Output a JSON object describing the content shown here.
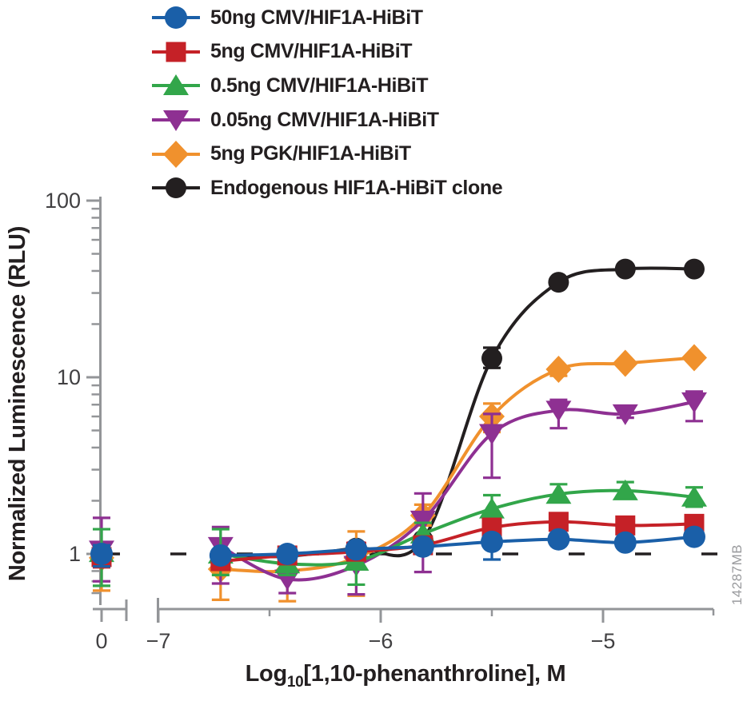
{
  "watermark": "14287MB",
  "chart_data": {
    "type": "line",
    "title": "",
    "ylabel": "Normalized Luminescence (RLU)",
    "xlabel": {
      "prefix": "Log",
      "subscript": "10",
      "rest": "[1,10-phenanthroline], M"
    },
    "y_axis": {
      "scale": "log",
      "tick_labels": [
        "100",
        "10",
        "1"
      ],
      "tick_values": [
        100,
        10,
        1
      ],
      "range": [
        0.55,
        100
      ]
    },
    "x_axis": {
      "zero_label": "0",
      "tick_labels": [
        "−7",
        "−6",
        "−5"
      ],
      "tick_values": [
        -7,
        -6,
        -5
      ],
      "minor_tick_values": [
        -6.5,
        -5.5
      ],
      "range": [
        -7,
        -4.5
      ],
      "has_break": true
    },
    "baseline": {
      "value": 1,
      "style": "dashed",
      "color": "#231F20"
    },
    "x_log_values": [
      -6.72,
      -6.42,
      -6.11,
      -5.81,
      -5.5,
      -5.2,
      -4.9,
      -4.59
    ],
    "control_x_label": "0",
    "series": [
      {
        "name": "50ng CMV/HIF1A-HiBiT",
        "color": "#1A5FA8",
        "marker": "circle",
        "control": 1.0,
        "control_err": {
          "hi": 0.12,
          "lo": 0.15
        },
        "values": [
          0.98,
          1.0,
          1.06,
          1.1,
          1.17,
          1.21,
          1.16,
          1.25
        ],
        "err_hi": [
          0,
          0,
          0,
          0,
          0.1,
          0,
          0,
          0
        ],
        "err_lo": [
          0,
          0,
          0,
          0,
          0.24,
          0,
          0,
          0
        ]
      },
      {
        "name": "5ng CMV/HIF1A-HiBiT",
        "color": "#C52127",
        "marker": "square",
        "control": 0.96,
        "control_err": {
          "hi": 0.12,
          "lo": 0.12
        },
        "values": [
          0.91,
          0.98,
          1.03,
          1.12,
          1.41,
          1.52,
          1.45,
          1.48
        ],
        "err_hi": [
          0,
          0,
          0,
          0,
          0,
          0,
          0,
          0
        ],
        "err_lo": [
          0,
          0,
          0,
          0,
          0,
          0,
          0,
          0
        ]
      },
      {
        "name": "0.5ng CMV/HIF1A-HiBiT",
        "color": "#32A64A",
        "marker": "triangle-up",
        "control": 1.02,
        "control_err": {
          "hi": 0.36,
          "lo": 0.36
        },
        "values": [
          1.0,
          0.88,
          0.91,
          1.3,
          1.8,
          2.18,
          2.28,
          2.1
        ],
        "err_hi": [
          0.38,
          0.12,
          0.16,
          0.2,
          0.35,
          0.3,
          0.27,
          0.28
        ],
        "err_lo": [
          0.24,
          0.12,
          0.24,
          0.15,
          0.3,
          0.2,
          0.2,
          0.25
        ]
      },
      {
        "name": "0.05ng CMV/HIF1A-HiBiT",
        "color": "#8E3092",
        "marker": "triangle-down",
        "control": 1.05,
        "control_err": {
          "hi": 0.55,
          "lo": 0.35
        },
        "values": [
          1.1,
          0.72,
          0.86,
          1.55,
          4.8,
          6.5,
          6.2,
          7.25
        ],
        "err_hi": [
          0.32,
          0.12,
          0.3,
          0.65,
          1.4,
          0.95,
          0.3,
          1.05
        ],
        "err_lo": [
          0.42,
          0.12,
          0.27,
          0.76,
          2.1,
          1.35,
          0.3,
          1.6
        ]
      },
      {
        "name": "5ng PGK/HIF1A-HiBiT",
        "color": "#F0912D",
        "marker": "diamond",
        "control": 0.95,
        "control_err": {
          "hi": 0.15,
          "lo": 0.33
        },
        "values": [
          0.82,
          0.8,
          0.95,
          1.65,
          6.0,
          11.1,
          12.0,
          12.9
        ],
        "err_hi": [
          0.08,
          0.08,
          0.39,
          0.25,
          1.1,
          0.4,
          0,
          0
        ],
        "err_lo": [
          0.27,
          0.26,
          0.37,
          0.2,
          1.1,
          0.9,
          0,
          0
        ]
      },
      {
        "name": "Endogenous HIF1A-HiBiT clone",
        "color": "#231F20",
        "marker": "circle",
        "control": 1.0,
        "control_err": {
          "hi": 0,
          "lo": 0
        },
        "values": [
          0.98,
          0.97,
          1.08,
          1.2,
          12.8,
          34.5,
          41.0,
          41.0
        ],
        "err_hi": [
          0,
          0,
          0,
          0,
          1.9,
          0,
          0,
          0
        ],
        "err_lo": [
          0,
          0,
          0,
          0,
          1.5,
          0,
          0,
          0
        ]
      }
    ]
  }
}
